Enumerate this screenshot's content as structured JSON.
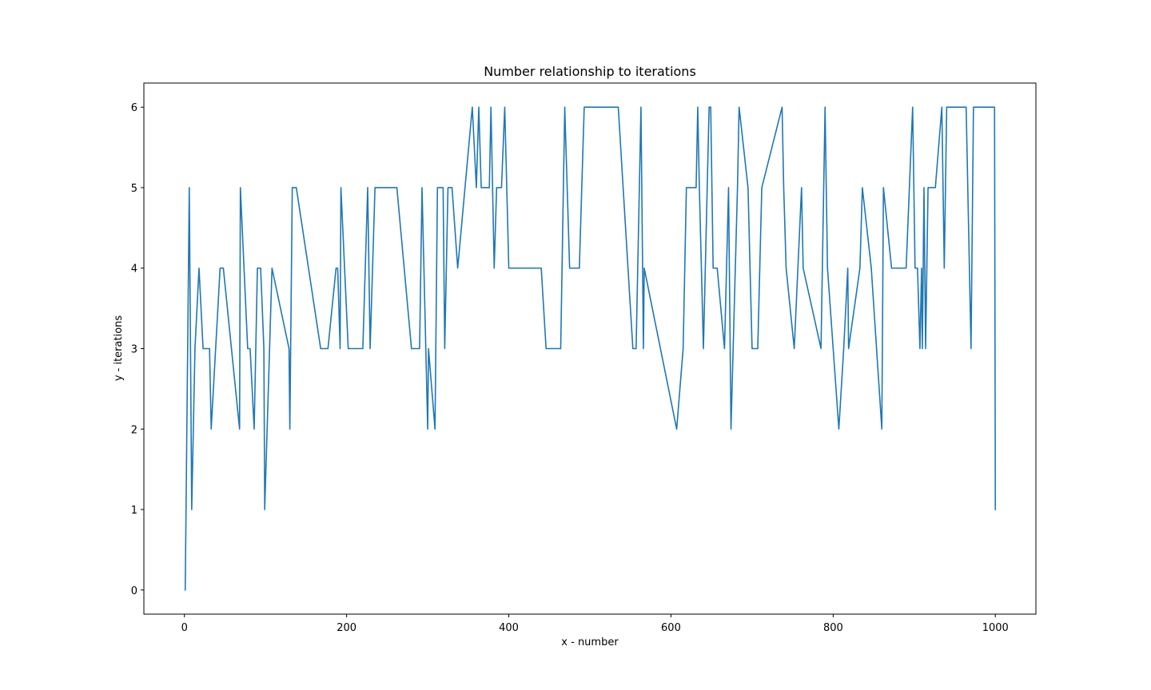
{
  "chart_data": {
    "type": "line",
    "title": "Number relationship to iterations",
    "xlabel": "x - number",
    "ylabel": "y - iterations",
    "xlim": [
      -50,
      1050
    ],
    "ylim": [
      -0.3,
      6.3
    ],
    "x_ticks": [
      0,
      200,
      400,
      600,
      800,
      1000
    ],
    "y_ticks": [
      0,
      1,
      2,
      3,
      4,
      5,
      6
    ],
    "x_tick_labels": [
      "0",
      "200",
      "400",
      "600",
      "800",
      "1000"
    ],
    "y_tick_labels": [
      "0",
      "1",
      "2",
      "3",
      "4",
      "5",
      "6"
    ],
    "grid": false,
    "legend": "none",
    "series": [
      {
        "color": "#1f77b4",
        "x": [
          1,
          6,
          9,
          13,
          18,
          23,
          28,
          31,
          33,
          44,
          48,
          68,
          69,
          78,
          81,
          86,
          90,
          94,
          98,
          99,
          108,
          129,
          130,
          133,
          138,
          168,
          177,
          187,
          189,
          192,
          193,
          202,
          220,
          226,
          229,
          235,
          262,
          280,
          290,
          293,
          300,
          301,
          309,
          312,
          319,
          321,
          325,
          330,
          337,
          355,
          360,
          363,
          366,
          376,
          378,
          382,
          385,
          391,
          395,
          400,
          440,
          446,
          464,
          469,
          475,
          487,
          493,
          535,
          553,
          557,
          563,
          566,
          567,
          607,
          615,
          619,
          631,
          633,
          635,
          640,
          647,
          649,
          652,
          657,
          666,
          671,
          674,
          682,
          684,
          695,
          700,
          707,
          712,
          737,
          739,
          742,
          752,
          761,
          763,
          785,
          790,
          793,
          807,
          813,
          818,
          819,
          833,
          836,
          847,
          860,
          862,
          872,
          882,
          890,
          898,
          901,
          904,
          907,
          909,
          910,
          912,
          914,
          917,
          922,
          926,
          934,
          937,
          940,
          945,
          955,
          964,
          970,
          973,
          979,
          999,
          1000
        ],
        "y": [
          0,
          5,
          1,
          3,
          4,
          3,
          3,
          3,
          2,
          4,
          4,
          2,
          5,
          3,
          3,
          2,
          4,
          4,
          3,
          1,
          4,
          3,
          2,
          5,
          5,
          3,
          3,
          4,
          4,
          3,
          5,
          3,
          3,
          5,
          3,
          5,
          5,
          3,
          3,
          5,
          2,
          3,
          2,
          5,
          5,
          3,
          5,
          5,
          4,
          6,
          5,
          6,
          5,
          5,
          6,
          4,
          5,
          5,
          6,
          4,
          4,
          3,
          3,
          6,
          4,
          4,
          6,
          6,
          3,
          3,
          6,
          3,
          4,
          2,
          3,
          5,
          5,
          6,
          5,
          3,
          6,
          6,
          4,
          4,
          3,
          5,
          2,
          5,
          6,
          5,
          3,
          3,
          5,
          6,
          5,
          4,
          3,
          5,
          4,
          3,
          6,
          4,
          2,
          3,
          4,
          3,
          4,
          5,
          4,
          2,
          5,
          4,
          4,
          4,
          6,
          4,
          4,
          3,
          4,
          3,
          5,
          3,
          5,
          5,
          5,
          6,
          4,
          6,
          6,
          6,
          6,
          3,
          6,
          6,
          6,
          1
        ]
      }
    ]
  }
}
